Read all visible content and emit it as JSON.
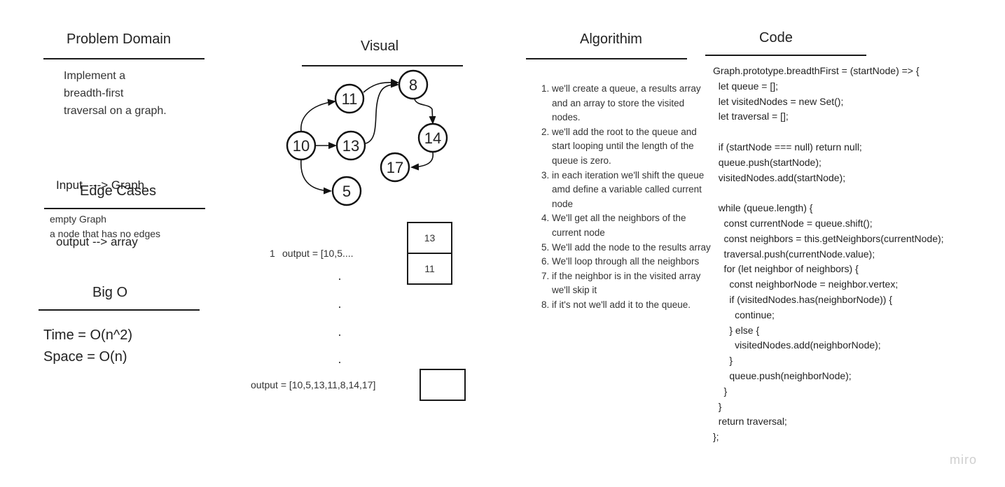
{
  "problem": {
    "title": "Problem Domain",
    "description": [
      "Implement a",
      "breadth-first",
      "traversal on a graph."
    ],
    "input_line": "Input  ---> Graph",
    "output_line": "output --> array"
  },
  "edge_cases": {
    "title": "Edge Cases",
    "items": [
      "empty Graph",
      "a node that has no edges"
    ]
  },
  "big_o": {
    "title": "Big O",
    "time": "Time = O(n^2)",
    "space": "Space = O(n)"
  },
  "visual": {
    "title": "Visual",
    "nodes": [
      "10",
      "11",
      "13",
      "5",
      "8",
      "14",
      "17"
    ],
    "step_label": "1",
    "partial_output": "output = [10,5....",
    "stack": [
      "13",
      "11"
    ],
    "ellipsis_dots": [
      "·",
      "·",
      "·",
      "·"
    ],
    "final_output": "output = [10,5,13,11,8,14,17]",
    "empty_box": ""
  },
  "algorithm": {
    "title": "Algorithim",
    "steps": [
      "we'll create a queue, a results array and an array to store the visited nodes.",
      "we'll add the root to the queue and start looping until the length of the queue is zero.",
      " in each iteration we'll shift the queue amd define a variable called current node",
      "We'll get all the neighbors of the current node",
      "We'll add the node to the results array",
      "We'll loop through all the neighbors",
      "if the neighbor is in the visited array we'll skip it",
      "if it's not we'll add it to the queue."
    ]
  },
  "code": {
    "title": "Code",
    "lines": [
      "Graph.prototype.breadthFirst = (startNode) => {",
      "  let queue = [];",
      "  let visitedNodes = new Set();",
      "  let traversal = [];",
      "",
      "  if (startNode === null) return null;",
      "  queue.push(startNode);",
      "  visitedNodes.add(startNode);",
      "",
      "  while (queue.length) {",
      "    const currentNode = queue.shift();",
      "    const neighbors = this.getNeighbors(currentNode);",
      "    traversal.push(currentNode.value);",
      "    for (let neighbor of neighbors) {",
      "      const neighborNode = neighbor.vertex;",
      "      if (visitedNodes.has(neighborNode)) {",
      "        continue;",
      "      } else {",
      "        visitedNodes.add(neighborNode);",
      "      }",
      "      queue.push(neighborNode);",
      "    }",
      "  }",
      "  return traversal;",
      "};"
    ]
  },
  "watermark": "miro"
}
